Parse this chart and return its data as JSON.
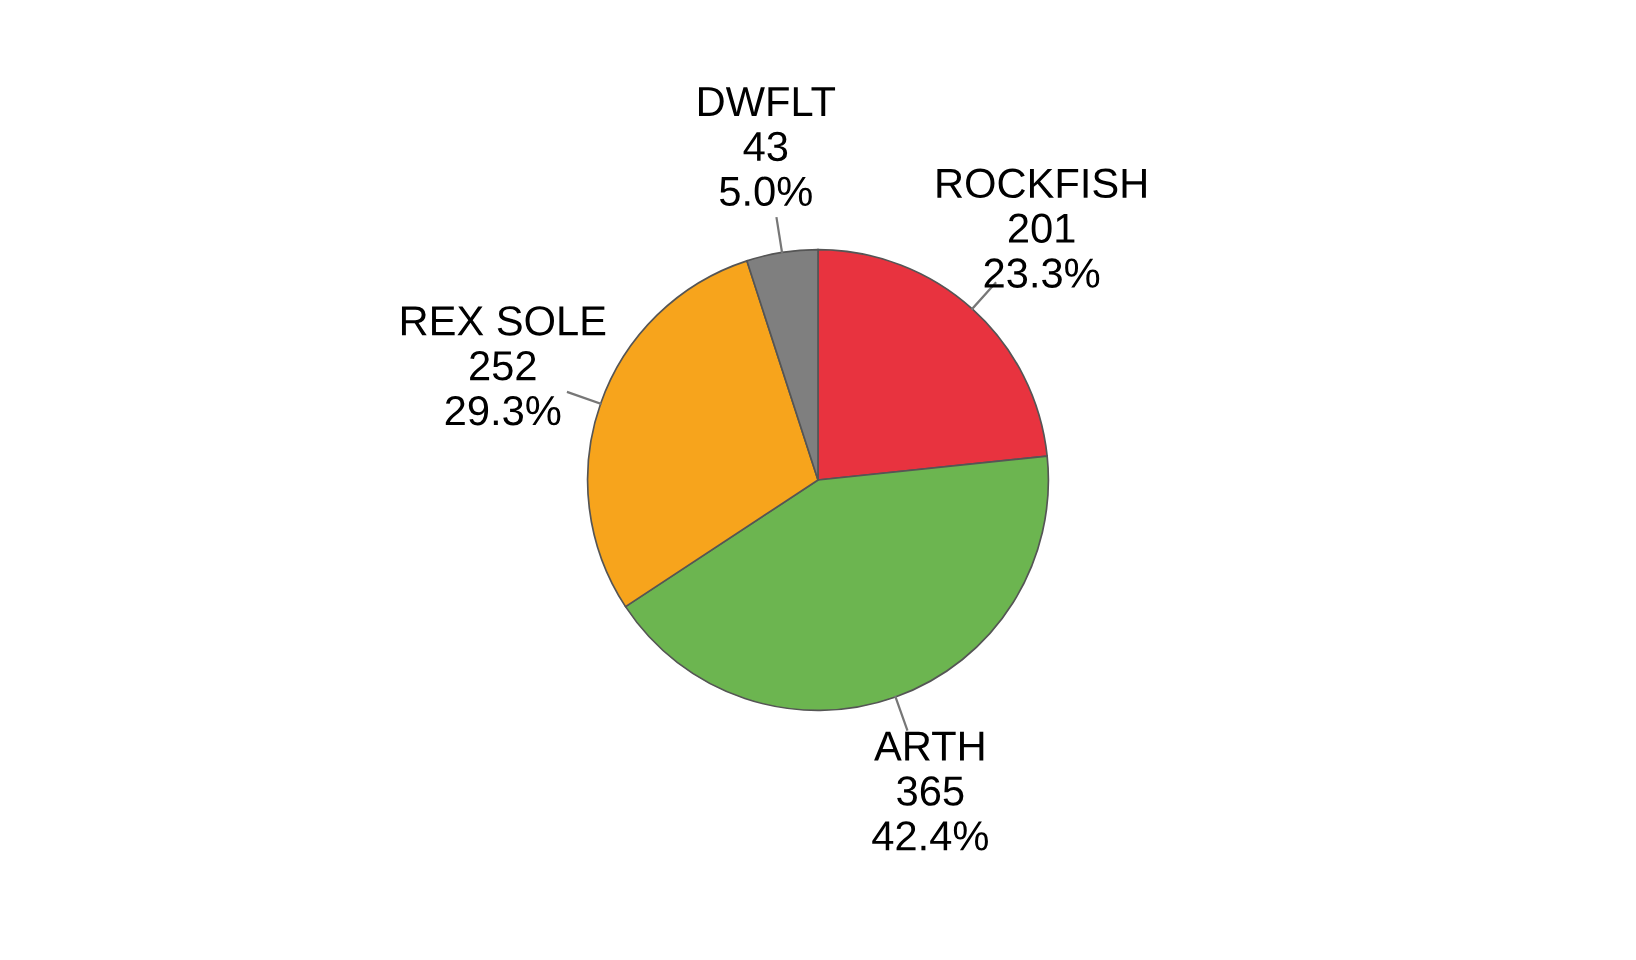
{
  "chart_data": {
    "type": "pie",
    "categories": [
      "ROCKFISH",
      "ARTH",
      "REX SOLE",
      "DWFLT"
    ],
    "values": [
      201,
      365,
      252,
      43
    ],
    "value_labels": [
      "201\n23.3%",
      "365\n42.4%",
      "252\n29.3%",
      "43\n5.0%"
    ],
    "colors": [
      "#e8333f",
      "#6cb550",
      "#f7a41c",
      "#7f7f7f"
    ]
  }
}
